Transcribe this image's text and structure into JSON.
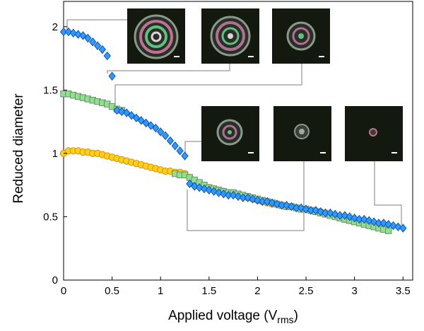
{
  "chart_data": {
    "type": "scatter",
    "xlabel": {
      "text": "Applied voltage (V",
      "subscript": "rms",
      "suffix": ")"
    },
    "ylabel": "Reduced diameter",
    "xlim": [
      0,
      3.6
    ],
    "ylim": [
      0,
      2.2
    ],
    "xticks": [
      0,
      0.5,
      1,
      1.5,
      2,
      2.5,
      3,
      3.5
    ],
    "yticks": [
      0,
      0.5,
      1,
      1.5,
      2
    ],
    "series": [
      {
        "marker": "circle",
        "color": "#ffd21a",
        "stroke": "#e08a00",
        "x": [
          0,
          0.05,
          0.1,
          0.15,
          0.2,
          0.25,
          0.3,
          0.35,
          0.4,
          0.45,
          0.5,
          0.55,
          0.6,
          0.65,
          0.7,
          0.75,
          0.8,
          0.85,
          0.9,
          0.95,
          1,
          1.05,
          1.1,
          1.15,
          1.2,
          1.25,
          1.3,
          1.35,
          1.4,
          1.45,
          1.5,
          1.55,
          1.6,
          1.65,
          1.7,
          1.75,
          1.8,
          1.85,
          1.9,
          1.95,
          2,
          2.05,
          2.1,
          2.15,
          2.2,
          2.25,
          2.3,
          2.35,
          2.4,
          2.45,
          2.5,
          2.55,
          2.6,
          2.65,
          2.7,
          2.75,
          2.8,
          2.85,
          2.9,
          2.95,
          3,
          3.05,
          3.1,
          3.15,
          3.2,
          3.25,
          3.3
        ],
        "values": [
          1.0,
          1.02,
          1.02,
          1.02,
          1.01,
          1.01,
          1.0,
          1.0,
          0.99,
          0.98,
          0.97,
          0.96,
          0.95,
          0.94,
          0.93,
          0.92,
          0.91,
          0.9,
          0.89,
          0.88,
          0.87,
          0.86,
          0.86,
          0.85,
          0.85,
          0.84,
          0.81,
          0.78,
          0.76,
          0.74,
          0.73,
          0.72,
          0.71,
          0.7,
          0.69,
          0.68,
          0.67,
          0.66,
          0.65,
          0.64,
          0.63,
          0.62,
          0.61,
          0.6,
          0.6,
          0.59,
          0.58,
          0.58,
          0.57,
          0.56,
          0.56,
          0.55,
          0.54,
          0.54,
          0.53,
          0.52,
          0.51,
          0.5,
          0.48,
          0.47,
          0.47,
          0.46,
          0.46,
          0.45,
          0.45,
          0.44,
          0.43
        ]
      },
      {
        "marker": "square",
        "color": "#8fe08f",
        "stroke": "#6a8f6a",
        "x": [
          0,
          0.05,
          0.1,
          0.15,
          0.2,
          0.25,
          0.3,
          0.35,
          0.4,
          0.45,
          0.5,
          0.55,
          0.6,
          1.15,
          1.2,
          1.25,
          1.3,
          1.35,
          1.4,
          1.45,
          1.5,
          1.55,
          1.6,
          1.65,
          1.7,
          1.75,
          1.8,
          1.85,
          1.9,
          1.95,
          2,
          2.05,
          2.1,
          2.15,
          2.2,
          2.25,
          2.3,
          2.35,
          2.4,
          2.45,
          2.5,
          2.55,
          2.6,
          2.65,
          2.7,
          2.75,
          2.8,
          2.85,
          2.9,
          2.95,
          3,
          3.05,
          3.1,
          3.15,
          3.2,
          3.25,
          3.3,
          3.35
        ],
        "values": [
          1.47,
          1.47,
          1.46,
          1.45,
          1.44,
          1.43,
          1.42,
          1.41,
          1.4,
          1.39,
          1.37,
          1.35,
          1.34,
          0.84,
          0.83,
          0.83,
          0.81,
          0.79,
          0.77,
          0.75,
          0.73,
          0.72,
          0.71,
          0.7,
          0.69,
          0.69,
          0.68,
          0.67,
          0.66,
          0.65,
          0.64,
          0.63,
          0.62,
          0.61,
          0.6,
          0.59,
          0.58,
          0.58,
          0.57,
          0.56,
          0.56,
          0.55,
          0.54,
          0.53,
          0.52,
          0.51,
          0.5,
          0.49,
          0.48,
          0.47,
          0.46,
          0.45,
          0.44,
          0.43,
          0.42,
          0.41,
          0.4,
          0.39
        ]
      },
      {
        "marker": "diamond",
        "color": "#2a9cff",
        "stroke": "#1a4fb0",
        "x": [
          0,
          0.05,
          0.1,
          0.15,
          0.2,
          0.25,
          0.3,
          0.35,
          0.4,
          0.45,
          0.5,
          0.55,
          0.6,
          0.65,
          0.7,
          0.75,
          0.8,
          0.85,
          0.9,
          0.95,
          1,
          1.05,
          1.1,
          1.15,
          1.2,
          1.25,
          1.3,
          1.35,
          1.4,
          1.45,
          1.5,
          1.55,
          1.6,
          1.65,
          1.7,
          1.75,
          1.8,
          1.85,
          1.9,
          1.95,
          2,
          2.05,
          2.1,
          2.15,
          2.2,
          2.25,
          2.3,
          2.35,
          2.4,
          2.45,
          2.5,
          2.55,
          2.6,
          2.65,
          2.7,
          2.75,
          2.8,
          2.85,
          2.9,
          2.95,
          3,
          3.05,
          3.1,
          3.15,
          3.2,
          3.25,
          3.3,
          3.35,
          3.4,
          3.45,
          3.5
        ],
        "values": [
          1.96,
          1.96,
          1.95,
          1.94,
          1.93,
          1.91,
          1.88,
          1.85,
          1.82,
          1.77,
          1.61,
          1.34,
          1.33,
          1.32,
          1.3,
          1.28,
          1.26,
          1.24,
          1.22,
          1.2,
          1.17,
          1.14,
          1.1,
          1.06,
          1.02,
          0.98,
          0.76,
          0.74,
          0.73,
          0.72,
          0.71,
          0.7,
          0.69,
          0.68,
          0.67,
          0.67,
          0.66,
          0.65,
          0.65,
          0.64,
          0.63,
          0.62,
          0.62,
          0.61,
          0.6,
          0.59,
          0.59,
          0.58,
          0.57,
          0.57,
          0.56,
          0.55,
          0.55,
          0.54,
          0.53,
          0.53,
          0.52,
          0.51,
          0.51,
          0.5,
          0.49,
          0.48,
          0.48,
          0.47,
          0.46,
          0.45,
          0.45,
          0.44,
          0.43,
          0.42,
          0.41
        ]
      }
    ]
  }
}
